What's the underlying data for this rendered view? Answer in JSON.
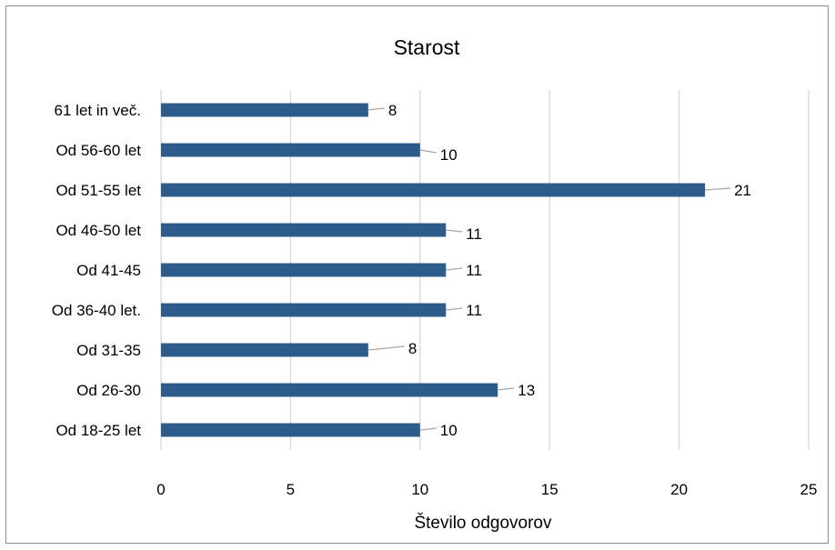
{
  "chart_data": {
    "type": "bar",
    "orientation": "horizontal",
    "title": "Starost",
    "xlabel": "Število odgovorov",
    "ylabel": "",
    "categories": [
      "Od 18-25 let",
      "Od 26-30",
      "Od 31-35",
      "Od 36-40 let.",
      "Od 41-45",
      "Od 46-50 let",
      "Od 51-55 let",
      "Od 56-60 let",
      "61 let in več."
    ],
    "values": [
      10,
      13,
      8,
      11,
      11,
      11,
      21,
      10,
      8
    ],
    "xlim": [
      0,
      25
    ],
    "xticks": [
      "0",
      "5",
      "10",
      "15",
      "20",
      "25"
    ],
    "grid": "vertical",
    "legend": "none",
    "bar_color": "#2e5c8a",
    "grid_color": "#d9d9d9",
    "leader_color": "#a6a6a6"
  }
}
